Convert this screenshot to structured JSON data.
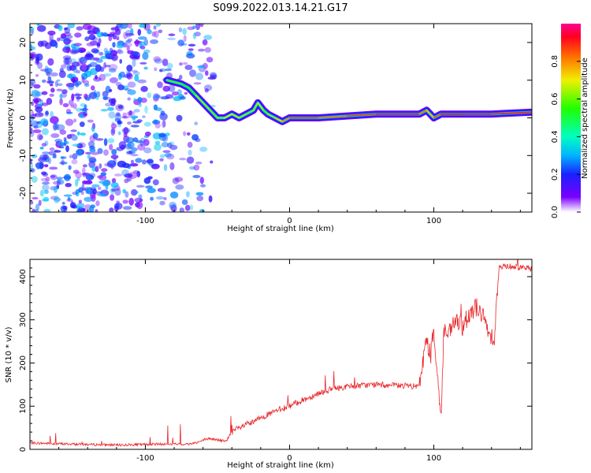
{
  "figure": {
    "title": "S099.2022.013.14.21.G17"
  },
  "chart_data": [
    {
      "type": "heatmap",
      "xlabel": "Height of straight line (km)",
      "ylabel": "Frequency (Hz)",
      "xlim": [
        -180,
        168
      ],
      "ylim": [
        -25,
        25
      ],
      "xticks": [
        -100,
        0,
        100
      ],
      "yticks": [
        -20,
        -10,
        0,
        10,
        20
      ],
      "grid": false,
      "colorbar": {
        "label": "Normalized spectral amplitude",
        "range": [
          0.0,
          1.0
        ],
        "ticks": [
          0.0,
          0.2,
          0.4,
          0.6,
          0.8
        ]
      },
      "ridge": {
        "x": [
          -85,
          -80,
          -75,
          -70,
          -65,
          -60,
          -55,
          -50,
          -45,
          -40,
          -35,
          -30,
          -25,
          -22,
          -18,
          -15,
          -10,
          -5,
          0,
          10,
          20,
          40,
          60,
          80,
          90,
          95,
          100,
          105,
          120,
          140,
          168
        ],
        "y": [
          10,
          9.5,
          9,
          8,
          6,
          4,
          2,
          0,
          0,
          1,
          0,
          1,
          2,
          4,
          2,
          1,
          0,
          -1,
          0,
          0,
          0,
          0.5,
          1,
          1,
          1,
          2,
          0,
          1,
          1,
          1,
          1.5
        ],
        "amplitude": [
          0.55,
          0.6,
          0.55,
          0.5,
          0.6,
          0.65,
          0.6,
          0.6,
          0.65,
          0.7,
          0.6,
          0.65,
          0.55,
          0.7,
          0.6,
          0.55,
          0.7,
          0.75,
          0.85,
          0.9,
          0.85,
          0.8,
          0.95,
          0.95,
          0.95,
          0.7,
          0.8,
          0.9,
          0.95,
          0.95,
          0.85
        ]
      },
      "noise_extent_x": [
        -180,
        -52
      ]
    },
    {
      "type": "line",
      "xlabel": "Height of straight line (km)",
      "ylabel": "SNR (10 * v/v)",
      "xlim": [
        -180,
        168
      ],
      "ylim": [
        0,
        440
      ],
      "xticks": [
        -100,
        0,
        100
      ],
      "yticks": [
        0,
        100,
        200,
        300,
        400
      ],
      "grid": false,
      "color": "#e8262b",
      "series": [
        {
          "x": [
            -180,
            -150,
            -120,
            -90,
            -70,
            -62,
            -56,
            -50,
            -44,
            -42,
            -38,
            -34,
            -30,
            -25,
            -20,
            -15,
            -10,
            -5,
            0,
            5,
            10,
            15,
            20,
            25,
            30,
            40,
            50,
            60,
            70,
            80,
            90,
            92,
            95,
            98,
            100,
            103,
            105,
            107,
            110,
            115,
            120,
            125,
            130,
            135,
            138,
            142,
            145,
            150,
            160,
            168
          ],
          "y": [
            15,
            12,
            10,
            12,
            12,
            18,
            25,
            22,
            18,
            30,
            45,
            50,
            58,
            62,
            75,
            80,
            88,
            95,
            100,
            108,
            115,
            122,
            130,
            135,
            140,
            145,
            148,
            150,
            148,
            147,
            145,
            200,
            250,
            220,
            280,
            150,
            70,
            280,
            260,
            300,
            280,
            320,
            330,
            300,
            270,
            260,
            420,
            425,
            422,
            418
          ]
        }
      ]
    }
  ]
}
